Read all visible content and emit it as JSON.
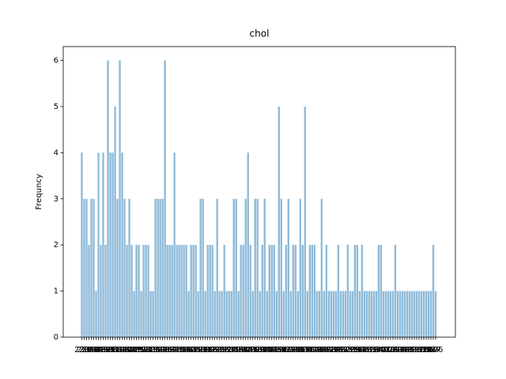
{
  "chart_data": {
    "type": "bar",
    "title": "chol",
    "y_label": "Frequncy",
    "categories": [
      233,
      250,
      204,
      236,
      354,
      192,
      294,
      263,
      199,
      168,
      239,
      275,
      266,
      211,
      283,
      219,
      340,
      226,
      247,
      234,
      243,
      302,
      212,
      175,
      417,
      197,
      198,
      177,
      273,
      213,
      304,
      232,
      269,
      360,
      308,
      245,
      208,
      264,
      321,
      325,
      235,
      257,
      216,
      256,
      231,
      141,
      252,
      201,
      222,
      260,
      182,
      303,
      265,
      309,
      186,
      203,
      183,
      220,
      209,
      258,
      227,
      261,
      221,
      205,
      240,
      318,
      298,
      564,
      277,
      214,
      248,
      255,
      207,
      223,
      288,
      160,
      394,
      315,
      246,
      244,
      270,
      195,
      196,
      254,
      126,
      313,
      262,
      215,
      193,
      271,
      268,
      267,
      210,
      295,
      306,
      178,
      242,
      180,
      228,
      149,
      278,
      253,
      342,
      157,
      286,
      229,
      284,
      224,
      206,
      167,
      230,
      335,
      276,
      353,
      225,
      330,
      290,
      172,
      305,
      188,
      282,
      185,
      326,
      274,
      164,
      307,
      249,
      341,
      407,
      217,
      174,
      281,
      289,
      322,
      299,
      300,
      293,
      184,
      409,
      259,
      200,
      327,
      237,
      218,
      319,
      166,
      311,
      169,
      187,
      176
    ],
    "values": [
      4,
      3,
      3,
      2,
      3,
      3,
      1,
      4,
      2,
      4,
      2,
      6,
      4,
      4,
      5,
      3,
      6,
      4,
      3,
      2,
      3,
      2,
      1,
      2,
      2,
      1,
      2,
      2,
      2,
      1,
      1,
      3,
      3,
      3,
      3,
      6,
      2,
      2,
      2,
      4,
      2,
      2,
      2,
      2,
      2,
      1,
      2,
      2,
      2,
      1,
      3,
      3,
      1,
      2,
      2,
      2,
      1,
      3,
      1,
      1,
      2,
      1,
      1,
      1,
      3,
      3,
      1,
      2,
      2,
      3,
      4,
      2,
      1,
      3,
      3,
      1,
      2,
      3,
      1,
      2,
      2,
      2,
      1,
      5,
      3,
      1,
      2,
      3,
      1,
      2,
      2,
      1,
      3,
      2,
      5,
      1,
      2,
      2,
      2,
      1,
      1,
      3,
      1,
      2,
      1,
      1,
      1,
      1,
      2,
      1,
      1,
      1,
      2,
      1,
      1,
      2,
      2,
      1,
      2,
      1,
      1,
      1,
      1,
      1,
      1,
      2,
      2,
      1,
      1,
      1,
      1,
      1,
      2,
      1,
      1,
      1,
      1,
      1,
      1,
      1,
      1,
      1,
      1,
      1,
      1,
      1,
      1,
      1,
      2,
      1
    ],
    "color": "#8fbbd9",
    "ylim": [
      0,
      6.3
    ],
    "yticks": [
      0,
      1,
      2,
      3,
      4,
      5,
      6
    ]
  }
}
